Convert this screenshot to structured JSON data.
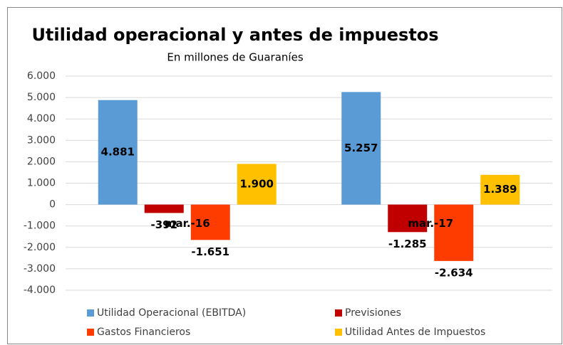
{
  "chart_data": {
    "type": "bar",
    "title": "Utilidad operacional y antes de impuestos",
    "subtitle": "En millones de Guaraníes",
    "categories": [
      "mar.-16",
      "mar.-17"
    ],
    "series": [
      {
        "name": "Utilidad Operacional (EBITDA)",
        "color": "#5b9bd5",
        "values": [
          4881,
          5257
        ],
        "value_labels": [
          "4.881",
          "5.257"
        ]
      },
      {
        "name": "Previsiones",
        "color": "#c00000",
        "values": [
          -392,
          -1285
        ],
        "value_labels": [
          "-392",
          "-1.285"
        ]
      },
      {
        "name": "Gastos Financieros",
        "color": "#ff3c00",
        "values": [
          -1651,
          -2634
        ],
        "value_labels": [
          "-1.651",
          "-2.634"
        ]
      },
      {
        "name": "Utilidad Antes de Impuestos",
        "color": "#ffc000",
        "values": [
          1900,
          1389
        ],
        "value_labels": [
          "1.900",
          "1.389"
        ]
      }
    ],
    "ylim": [
      -4000,
      6000
    ],
    "yticks": [
      {
        "value": -4000,
        "label": "-4.000"
      },
      {
        "value": -3000,
        "label": "-3.000"
      },
      {
        "value": -2000,
        "label": "-2.000"
      },
      {
        "value": -1000,
        "label": "-1.000"
      },
      0,
      {
        "value": 1000,
        "label": "1.000"
      },
      {
        "value": 2000,
        "label": "2.000"
      },
      {
        "value": 3000,
        "label": "3.000"
      },
      {
        "value": 4000,
        "label": "4.000"
      },
      {
        "value": 5000,
        "label": "5.000"
      },
      {
        "value": 6000,
        "label": "6.000"
      }
    ],
    "grid": true
  }
}
